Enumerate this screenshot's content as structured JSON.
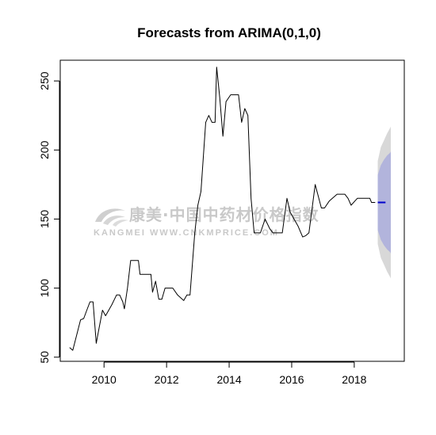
{
  "chart_data": {
    "type": "line",
    "title": "Forecasts from ARIMA(0,1,0)",
    "xlabel": "",
    "ylabel": "",
    "xlim": [
      2008.6,
      2019.6
    ],
    "ylim": [
      47,
      265
    ],
    "x_ticks": [
      2010,
      2012,
      2014,
      2016,
      2018
    ],
    "x_tick_labels": [
      "2010",
      "2012",
      "2014",
      "2016",
      "2018"
    ],
    "y_ticks": [
      50,
      100,
      150,
      200,
      250
    ],
    "y_tick_labels": [
      "50",
      "100",
      "150",
      "200",
      "250"
    ],
    "grid": false,
    "legend": "none",
    "series": [
      {
        "kind": "observed",
        "color": "#000000",
        "points": [
          [
            2008.9,
            57
          ],
          [
            2009.0,
            55
          ],
          [
            2009.25,
            77
          ],
          [
            2009.35,
            78
          ],
          [
            2009.45,
            84
          ],
          [
            2009.55,
            90
          ],
          [
            2009.65,
            90
          ],
          [
            2009.75,
            60
          ],
          [
            2009.85,
            72
          ],
          [
            2009.95,
            84
          ],
          [
            2010.05,
            80
          ],
          [
            2010.25,
            88
          ],
          [
            2010.4,
            95
          ],
          [
            2010.5,
            95
          ],
          [
            2010.6,
            90
          ],
          [
            2010.65,
            85
          ],
          [
            2010.75,
            100
          ],
          [
            2010.85,
            120
          ],
          [
            2011.1,
            120
          ],
          [
            2011.15,
            110
          ],
          [
            2011.5,
            110
          ],
          [
            2011.55,
            97
          ],
          [
            2011.65,
            105
          ],
          [
            2011.75,
            92
          ],
          [
            2011.85,
            92
          ],
          [
            2011.95,
            100
          ],
          [
            2012.2,
            100
          ],
          [
            2012.35,
            95
          ],
          [
            2012.5,
            92
          ],
          [
            2012.55,
            91
          ],
          [
            2012.65,
            95
          ],
          [
            2012.75,
            95
          ],
          [
            2012.9,
            140
          ],
          [
            2013.0,
            160
          ],
          [
            2013.1,
            170
          ],
          [
            2013.25,
            220
          ],
          [
            2013.35,
            225
          ],
          [
            2013.45,
            220
          ],
          [
            2013.55,
            220
          ],
          [
            2013.6,
            260
          ],
          [
            2013.7,
            238
          ],
          [
            2013.8,
            210
          ],
          [
            2013.9,
            235
          ],
          [
            2014.05,
            240
          ],
          [
            2014.3,
            240
          ],
          [
            2014.4,
            220
          ],
          [
            2014.5,
            230
          ],
          [
            2014.6,
            225
          ],
          [
            2014.7,
            165
          ],
          [
            2014.8,
            140
          ],
          [
            2015.0,
            140
          ],
          [
            2015.15,
            150
          ],
          [
            2015.3,
            143
          ],
          [
            2015.4,
            140
          ],
          [
            2015.7,
            140
          ],
          [
            2015.85,
            165
          ],
          [
            2015.95,
            155
          ],
          [
            2016.2,
            145
          ],
          [
            2016.35,
            137
          ],
          [
            2016.45,
            138
          ],
          [
            2016.55,
            140
          ],
          [
            2016.75,
            175
          ],
          [
            2016.95,
            158
          ],
          [
            2017.05,
            158
          ],
          [
            2017.2,
            163
          ],
          [
            2017.3,
            165
          ],
          [
            2017.45,
            168
          ],
          [
            2017.6,
            168
          ],
          [
            2017.7,
            168
          ],
          [
            2017.8,
            165
          ],
          [
            2017.9,
            160
          ],
          [
            2018.1,
            165
          ],
          [
            2018.3,
            165
          ],
          [
            2018.5,
            165
          ],
          [
            2018.55,
            162
          ],
          [
            2018.67,
            162
          ]
        ]
      },
      {
        "kind": "point-forecast",
        "color": "#0000cc",
        "points": [
          [
            2018.75,
            162
          ],
          [
            2019.0,
            162
          ]
        ]
      }
    ],
    "intervals": [
      {
        "level": "95%",
        "color": "#d8d8d8",
        "x": [
          2018.75,
          2018.85,
          2018.95,
          2019.05,
          2019.15,
          2019.17
        ],
        "upper": [
          192,
          202,
          207,
          212,
          216,
          217
        ],
        "lower": [
          132,
          122,
          117,
          112,
          108,
          107
        ]
      },
      {
        "level": "80%",
        "color": "#b2b4dc",
        "x": [
          2018.75,
          2018.85,
          2018.95,
          2019.05,
          2019.15,
          2019.17
        ],
        "upper": [
          182,
          189,
          193,
          196,
          198,
          199
        ],
        "lower": [
          142,
          135,
          131,
          128,
          126,
          125
        ]
      }
    ]
  },
  "watermark": {
    "cn_text": "康美·中国中药材价格指数",
    "en_text": "KANGMEI WWW.CNKMPRICE.COM"
  }
}
